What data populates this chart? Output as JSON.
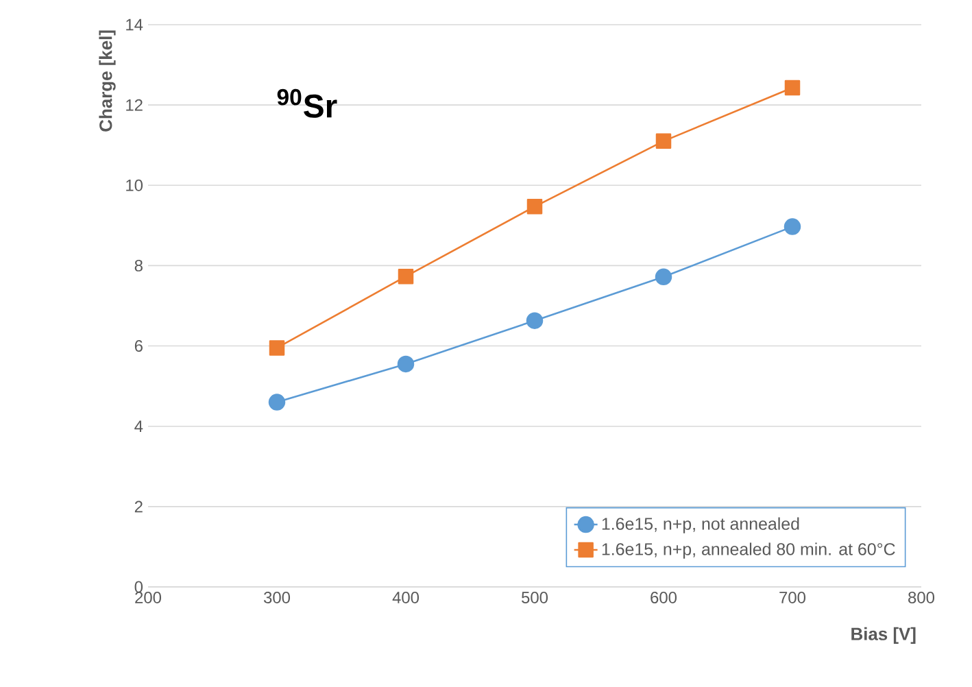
{
  "chart_data": {
    "type": "line",
    "xlabel": "Bias [V]",
    "ylabel": "Charge [kel]",
    "annotations": [
      "$^{90}$Sr"
    ],
    "x": [
      300,
      400,
      500,
      600,
      700
    ],
    "series": [
      {
        "name": "1.6e15, n+p, not annealed",
        "color": "#5b9bd5",
        "marker": "circle",
        "values": [
          4.6,
          5.55,
          6.63,
          7.72,
          8.97
        ]
      },
      {
        "name": "1.6e15, n+p, annealed 80 min. at 60°C",
        "color": "#ed7d31",
        "marker": "square",
        "values": [
          5.95,
          7.73,
          9.47,
          11.1,
          12.43
        ]
      }
    ],
    "xlim": [
      200,
      800
    ],
    "xticks": [
      200,
      300,
      400,
      500,
      600,
      700,
      800
    ],
    "ylim": [
      0,
      14
    ],
    "yticks": [
      0,
      2,
      4,
      6,
      8,
      10,
      12,
      14
    ],
    "grid": "y",
    "legend": "bottom right",
    "line_style": "solid"
  }
}
